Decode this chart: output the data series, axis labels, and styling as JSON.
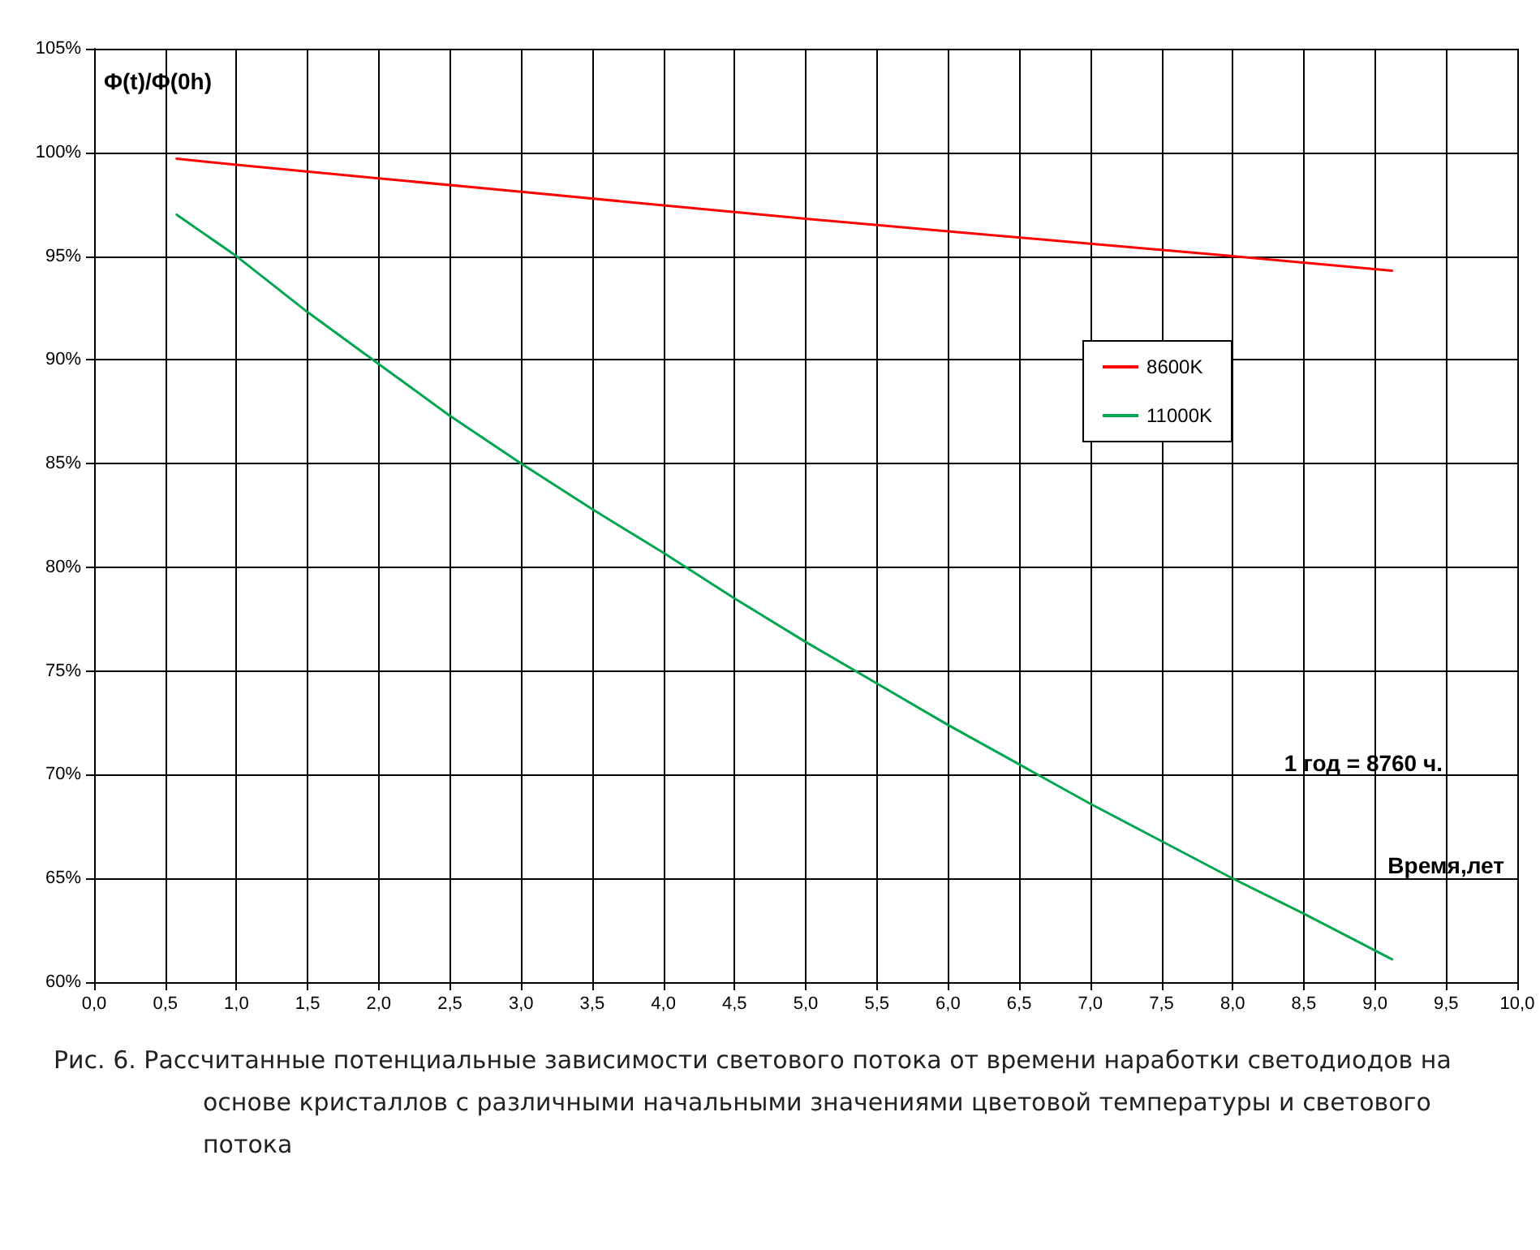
{
  "chart_data": {
    "type": "line",
    "ylabel": "Φ(t)/Φ(0h)",
    "xlabel": "Время,лет",
    "annotations": [
      "1 год = 8760 ч.",
      "Рис. 6. Рассчитанные потенциальные зависимости светового потока от времени наработки светодиодов на основе кристаллов с различными начальными значениями цветовой температуры и светового потока"
    ],
    "series": [
      {
        "name": "8600K",
        "color": "#ff0000",
        "x": [
          0.58,
          1,
          2,
          3,
          4,
          5,
          6,
          7,
          8,
          9.12
        ],
        "values": [
          99.7,
          99.4,
          98.75,
          98.1,
          97.45,
          96.8,
          96.2,
          95.6,
          95.0,
          94.3
        ]
      },
      {
        "name": "11000K",
        "color": "#00a651",
        "x": [
          0.58,
          1,
          1.5,
          2,
          2.5,
          3,
          3.5,
          4,
          4.5,
          5,
          5.5,
          6,
          6.5,
          7,
          7.5,
          8,
          8.5,
          9.12
        ],
        "values": [
          97.0,
          95.0,
          92.3,
          89.8,
          87.3,
          85.0,
          82.8,
          80.7,
          78.5,
          76.4,
          74.4,
          72.4,
          70.5,
          68.6,
          66.8,
          65.0,
          63.3,
          61.1
        ]
      }
    ],
    "xlim": [
      0,
      10
    ],
    "xticks": [
      {
        "value": 0,
        "label": "0,0"
      },
      {
        "value": 0.5,
        "label": "0,5"
      },
      {
        "value": 1,
        "label": "1,0"
      },
      {
        "value": 1.5,
        "label": "1,5"
      },
      {
        "value": 2,
        "label": "2,0"
      },
      {
        "value": 2.5,
        "label": "2,5"
      },
      {
        "value": 3,
        "label": "3,0"
      },
      {
        "value": 3.5,
        "label": "3,5"
      },
      {
        "value": 4,
        "label": "4,0"
      },
      {
        "value": 4.5,
        "label": "4,5"
      },
      {
        "value": 5,
        "label": "5,0"
      },
      {
        "value": 5.5,
        "label": "5,5"
      },
      {
        "value": 6,
        "label": "6,0"
      },
      {
        "value": 6.5,
        "label": "6,5"
      },
      {
        "value": 7,
        "label": "7,0"
      },
      {
        "value": 7.5,
        "label": "7,5"
      },
      {
        "value": 8,
        "label": "8,0"
      },
      {
        "value": 8.5,
        "label": "8,5"
      },
      {
        "value": 9,
        "label": "9,0"
      },
      {
        "value": 9.5,
        "label": "9,5"
      },
      {
        "value": 10,
        "label": "10,0"
      }
    ],
    "ylim": [
      60,
      105
    ],
    "yticks": [
      {
        "value": 60,
        "label": "60%"
      },
      {
        "value": 65,
        "label": "65%"
      },
      {
        "value": 70,
        "label": "70%"
      },
      {
        "value": 75,
        "label": "75%"
      },
      {
        "value": 80,
        "label": "80%"
      },
      {
        "value": 85,
        "label": "85%"
      },
      {
        "value": 90,
        "label": "90%"
      },
      {
        "value": 95,
        "label": "95%"
      },
      {
        "value": 100,
        "label": "100%"
      },
      {
        "value": 105,
        "label": "105%"
      }
    ],
    "grid": true,
    "legend": "right",
    "marker": "none",
    "line_style": "solid"
  }
}
